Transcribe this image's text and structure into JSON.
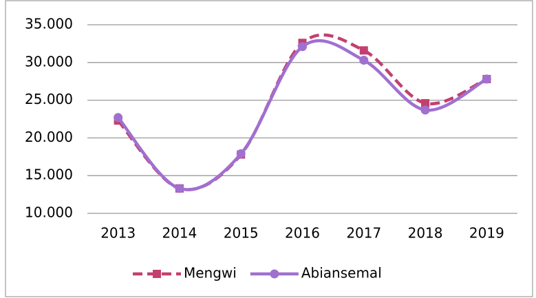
{
  "chart_data": {
    "type": "line",
    "categories": [
      "2013",
      "2014",
      "2015",
      "2016",
      "2017",
      "2018",
      "2019"
    ],
    "series": [
      {
        "name": "Mengwi",
        "color": "#c2406f",
        "dash": true,
        "marker": "square",
        "values": [
          22300,
          13300,
          17800,
          32600,
          31600,
          24600,
          27800
        ]
      },
      {
        "name": "Abiansemal",
        "color": "#a070d0",
        "dash": false,
        "marker": "circle",
        "values": [
          22700,
          13300,
          17900,
          32100,
          30300,
          23700,
          27800
        ]
      }
    ],
    "ylim": [
      10000,
      35000
    ],
    "yticks": [
      {
        "value": 10000,
        "label": "10.000"
      },
      {
        "value": 15000,
        "label": "15.000"
      },
      {
        "value": 20000,
        "label": "20.000"
      },
      {
        "value": 25000,
        "label": "25.000"
      },
      {
        "value": 30000,
        "label": "30.000"
      },
      {
        "value": 35000,
        "label": "35.000"
      }
    ],
    "grid": true,
    "smooth": true,
    "legend": "bottom"
  }
}
